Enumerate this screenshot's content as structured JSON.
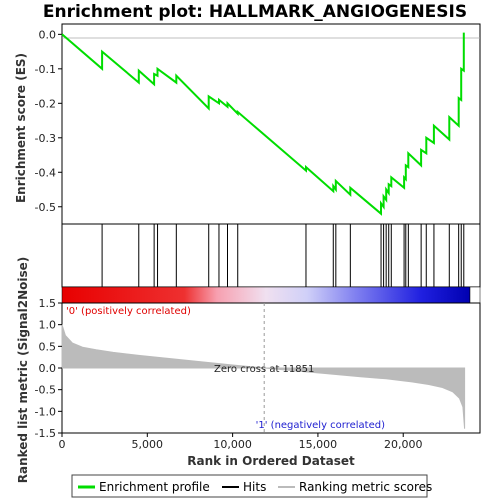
{
  "colors": {
    "profile": "#00dd00",
    "hits": "#000000",
    "metric": "#bbbbbb",
    "positive_text": "#e00000",
    "negative_text": "#2020d0",
    "zero_line": "#aaaaaa"
  },
  "chart_data": {
    "type": "line",
    "title": "Enrichment plot: HALLMARK_ANGIOGENESIS",
    "xlabel": "Rank in Ordered Dataset",
    "ylabel_top": "Enrichment score (ES)",
    "ylabel_bottom": "Ranked list metric (Signal2Noise)",
    "xlim": [
      0,
      24500
    ],
    "ylim_top": [
      -0.55,
      0.03
    ],
    "ylim_bottom": [
      -1.5,
      1.5
    ],
    "x_ticks": [
      0,
      5000,
      10000,
      15000,
      20000
    ],
    "x_tick_labels": [
      "0",
      "5,000",
      "10,000",
      "15,000",
      "20,000"
    ],
    "y_ticks_top": [
      0.0,
      -0.1,
      -0.2,
      -0.3,
      -0.4,
      -0.5
    ],
    "y_tick_labels_top": [
      "0.0",
      "-0.1",
      "-0.2",
      "-0.3",
      "-0.4",
      "-0.5"
    ],
    "y_ticks_bottom": [
      1.5,
      1.0,
      0.5,
      0.0,
      -0.5,
      -1.0,
      -1.5
    ],
    "y_tick_labels_bottom": [
      "1.5",
      "1.0",
      "0.5",
      "0.0",
      "-0.5",
      "-1.0",
      "-1.5"
    ],
    "hits": [
      2350,
      4500,
      5400,
      5600,
      6700,
      8600,
      9200,
      9700,
      10300,
      14300,
      15900,
      16050,
      16900,
      18700,
      18850,
      19000,
      19150,
      19300,
      20050,
      20150,
      20300,
      21050,
      21350,
      21800,
      22700,
      23250,
      23400,
      23550
    ],
    "es_profile": [
      [
        0,
        0.0
      ],
      [
        2350,
        -0.1
      ],
      [
        2350,
        -0.05
      ],
      [
        4500,
        -0.14
      ],
      [
        4500,
        -0.105
      ],
      [
        5400,
        -0.145
      ],
      [
        5400,
        -0.115
      ],
      [
        5600,
        -0.12
      ],
      [
        5600,
        -0.1
      ],
      [
        6700,
        -0.14
      ],
      [
        6700,
        -0.12
      ],
      [
        8600,
        -0.215
      ],
      [
        8600,
        -0.18
      ],
      [
        9200,
        -0.2
      ],
      [
        9200,
        -0.19
      ],
      [
        9700,
        -0.21
      ],
      [
        9700,
        -0.2
      ],
      [
        10300,
        -0.23
      ],
      [
        10300,
        -0.225
      ],
      [
        14300,
        -0.395
      ],
      [
        14300,
        -0.385
      ],
      [
        15900,
        -0.455
      ],
      [
        15900,
        -0.44
      ],
      [
        16050,
        -0.45
      ],
      [
        16050,
        -0.425
      ],
      [
        16900,
        -0.465
      ],
      [
        16900,
        -0.445
      ],
      [
        18700,
        -0.52
      ],
      [
        18700,
        -0.49
      ],
      [
        18850,
        -0.5
      ],
      [
        18850,
        -0.47
      ],
      [
        19000,
        -0.48
      ],
      [
        19000,
        -0.45
      ],
      [
        19150,
        -0.46
      ],
      [
        19150,
        -0.435
      ],
      [
        19300,
        -0.44
      ],
      [
        19300,
        -0.415
      ],
      [
        20050,
        -0.445
      ],
      [
        20050,
        -0.415
      ],
      [
        20150,
        -0.42
      ],
      [
        20150,
        -0.38
      ],
      [
        20300,
        -0.385
      ],
      [
        20300,
        -0.345
      ],
      [
        21050,
        -0.38
      ],
      [
        21050,
        -0.335
      ],
      [
        21350,
        -0.345
      ],
      [
        21350,
        -0.3
      ],
      [
        21800,
        -0.315
      ],
      [
        21800,
        -0.265
      ],
      [
        22700,
        -0.305
      ],
      [
        22700,
        -0.24
      ],
      [
        23250,
        -0.265
      ],
      [
        23250,
        -0.185
      ],
      [
        23400,
        -0.19
      ],
      [
        23400,
        -0.1
      ],
      [
        23550,
        -0.105
      ],
      [
        23550,
        0.005
      ]
    ],
    "metric_curve": [
      [
        0,
        1.0
      ],
      [
        200,
        0.75
      ],
      [
        600,
        0.58
      ],
      [
        1200,
        0.48
      ],
      [
        2000,
        0.42
      ],
      [
        3000,
        0.36
      ],
      [
        4500,
        0.29
      ],
      [
        6000,
        0.23
      ],
      [
        8000,
        0.15
      ],
      [
        10000,
        0.07
      ],
      [
        11851,
        0.0
      ],
      [
        13500,
        -0.06
      ],
      [
        15500,
        -0.13
      ],
      [
        17500,
        -0.2
      ],
      [
        19000,
        -0.25
      ],
      [
        20500,
        -0.32
      ],
      [
        21500,
        -0.38
      ],
      [
        22300,
        -0.45
      ],
      [
        22900,
        -0.55
      ],
      [
        23300,
        -0.7
      ],
      [
        23500,
        -0.9
      ],
      [
        23600,
        -1.4
      ]
    ],
    "zero_cross": 11851,
    "zero_cross_label": "Zero cross at 11851",
    "positive_label": "'0' (positively correlated)",
    "negative_label": "'1' (negatively correlated)",
    "legend": [
      "Enrichment profile",
      "Hits",
      "Ranking metric scores"
    ]
  }
}
